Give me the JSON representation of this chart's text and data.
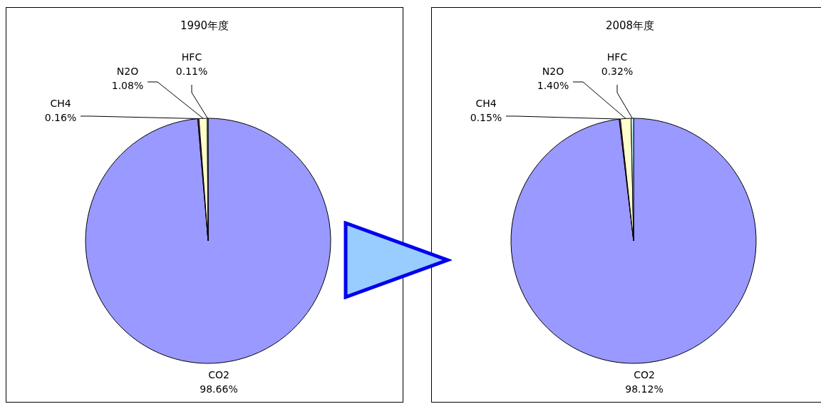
{
  "chart_data": [
    {
      "type": "pie",
      "title": "1990年度",
      "categories": [
        "CO2",
        "CH4",
        "N2O",
        "HFC"
      ],
      "values": [
        98.66,
        0.16,
        1.08,
        0.11
      ],
      "colors": [
        "#9999ff",
        "#993366",
        "#ffffcc",
        "#ccffff"
      ],
      "value_labels": [
        "98.66%",
        "0.16%",
        "1.08%",
        "0.11%"
      ],
      "legend": false
    },
    {
      "type": "pie",
      "title": "2008年度",
      "categories": [
        "CO2",
        "CH4",
        "N2O",
        "HFC"
      ],
      "values": [
        98.12,
        0.15,
        1.4,
        0.32
      ],
      "colors": [
        "#9999ff",
        "#993366",
        "#ffffcc",
        "#ccffff"
      ],
      "value_labels": [
        "98.12%",
        "0.15%",
        "1.40%",
        "0.32%"
      ],
      "legend": false
    }
  ]
}
